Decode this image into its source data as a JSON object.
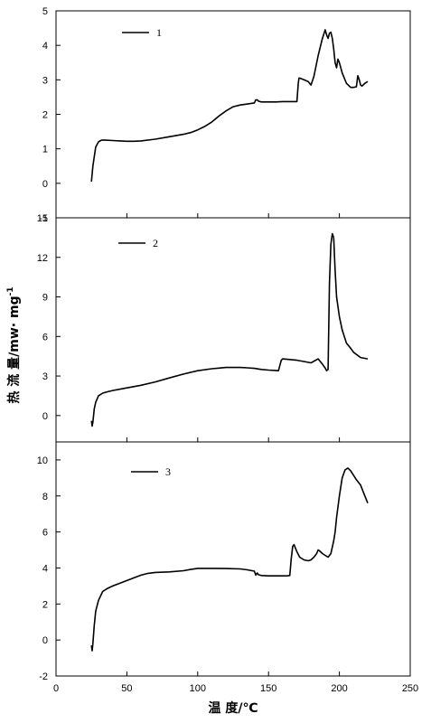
{
  "figure": {
    "ylabel": "热 流 量/mw· mg",
    "ylabel_superscript": "-1",
    "xlabel": "温   度/℃"
  },
  "chart_data": [
    {
      "type": "line",
      "legend": "1",
      "xlim": [
        0,
        250
      ],
      "ylim": [
        -1,
        5
      ],
      "yticks": [
        "-1",
        "0",
        "1",
        "2",
        "3",
        "4",
        "5"
      ],
      "series": [
        {
          "name": "1",
          "x": [
            25,
            26,
            28,
            30,
            32,
            35,
            40,
            45,
            50,
            55,
            60,
            70,
            80,
            90,
            95,
            100,
            105,
            110,
            115,
            120,
            125,
            130,
            135,
            140,
            141,
            142,
            143,
            145,
            150,
            155,
            160,
            165,
            170,
            171,
            171.5,
            172,
            175,
            178,
            180,
            182,
            185,
            188,
            190,
            191,
            192,
            193,
            194,
            195,
            196,
            197,
            198,
            199,
            200,
            202,
            205,
            208,
            210,
            212,
            213,
            214,
            215,
            216,
            218,
            220
          ],
          "y": [
            0.05,
            0.5,
            1.05,
            1.2,
            1.25,
            1.25,
            1.24,
            1.23,
            1.22,
            1.22,
            1.23,
            1.28,
            1.35,
            1.42,
            1.47,
            1.55,
            1.65,
            1.78,
            1.95,
            2.1,
            2.22,
            2.27,
            2.3,
            2.33,
            2.42,
            2.42,
            2.38,
            2.36,
            2.36,
            2.36,
            2.37,
            2.37,
            2.37,
            2.9,
            3.05,
            3.05,
            3.0,
            2.95,
            2.85,
            3.1,
            3.7,
            4.2,
            4.45,
            4.3,
            4.2,
            4.35,
            4.38,
            4.2,
            3.9,
            3.5,
            3.35,
            3.6,
            3.5,
            3.2,
            2.9,
            2.78,
            2.78,
            2.8,
            3.12,
            3.0,
            2.85,
            2.82,
            2.9,
            2.95
          ]
        }
      ]
    },
    {
      "type": "line",
      "legend": "2",
      "xlim": [
        0,
        250
      ],
      "ylim": [
        -2,
        15
      ],
      "yticks": [
        "0",
        "3",
        "6",
        "9",
        "12",
        "15"
      ],
      "series": [
        {
          "name": "2",
          "x": [
            25,
            25.5,
            26,
            27,
            28,
            30,
            33,
            36,
            40,
            50,
            60,
            70,
            80,
            90,
            100,
            110,
            115,
            120,
            125,
            130,
            135,
            140,
            145,
            150,
            155,
            157,
            158,
            159,
            160,
            165,
            170,
            175,
            180,
            185,
            188,
            190,
            191,
            192,
            193,
            194,
            195,
            196,
            197,
            198,
            200,
            202,
            205,
            208,
            210,
            215,
            220
          ],
          "y": [
            -0.4,
            -0.8,
            -0.5,
            0.5,
            1.0,
            1.5,
            1.7,
            1.8,
            1.9,
            2.1,
            2.3,
            2.55,
            2.85,
            3.15,
            3.4,
            3.55,
            3.6,
            3.65,
            3.65,
            3.65,
            3.62,
            3.58,
            3.5,
            3.45,
            3.42,
            3.4,
            3.8,
            4.2,
            4.3,
            4.25,
            4.2,
            4.1,
            4.0,
            4.3,
            3.9,
            3.6,
            3.4,
            3.5,
            10.0,
            13.0,
            13.8,
            13.5,
            11.0,
            9.0,
            7.5,
            6.5,
            5.5,
            5.1,
            4.8,
            4.4,
            4.3
          ]
        }
      ]
    },
    {
      "type": "line",
      "legend": "3",
      "xlim": [
        0,
        250
      ],
      "xticks": [
        "0",
        "50",
        "100",
        "150",
        "200",
        "250"
      ],
      "ylim": [
        -2,
        11
      ],
      "yticks": [
        "-2",
        "0",
        "2",
        "4",
        "6",
        "8",
        "10"
      ],
      "series": [
        {
          "name": "3",
          "x": [
            25,
            25.5,
            26,
            27,
            28,
            30,
            33,
            36,
            40,
            45,
            50,
            55,
            60,
            65,
            70,
            80,
            90,
            95,
            100,
            110,
            120,
            130,
            135,
            140,
            141,
            142,
            143,
            145,
            150,
            155,
            160,
            163,
            165,
            166,
            167,
            168,
            170,
            172,
            175,
            178,
            180,
            182,
            184,
            185,
            186,
            188,
            190,
            192,
            194,
            196,
            197,
            198,
            200,
            202,
            204,
            206,
            208,
            210,
            212,
            215,
            218,
            220
          ],
          "y": [
            -0.3,
            -0.6,
            -0.2,
            0.8,
            1.6,
            2.2,
            2.7,
            2.85,
            3.0,
            3.15,
            3.3,
            3.45,
            3.6,
            3.7,
            3.75,
            3.78,
            3.85,
            3.92,
            3.98,
            3.98,
            3.97,
            3.95,
            3.9,
            3.82,
            3.6,
            3.72,
            3.62,
            3.58,
            3.56,
            3.56,
            3.56,
            3.56,
            3.58,
            4.5,
            5.2,
            5.3,
            4.9,
            4.6,
            4.45,
            4.4,
            4.45,
            4.6,
            4.8,
            5.0,
            4.95,
            4.8,
            4.7,
            4.6,
            4.8,
            5.5,
            6.0,
            6.8,
            8.0,
            9.0,
            9.45,
            9.55,
            9.4,
            9.15,
            8.9,
            8.6,
            8.0,
            7.6
          ]
        }
      ]
    }
  ]
}
